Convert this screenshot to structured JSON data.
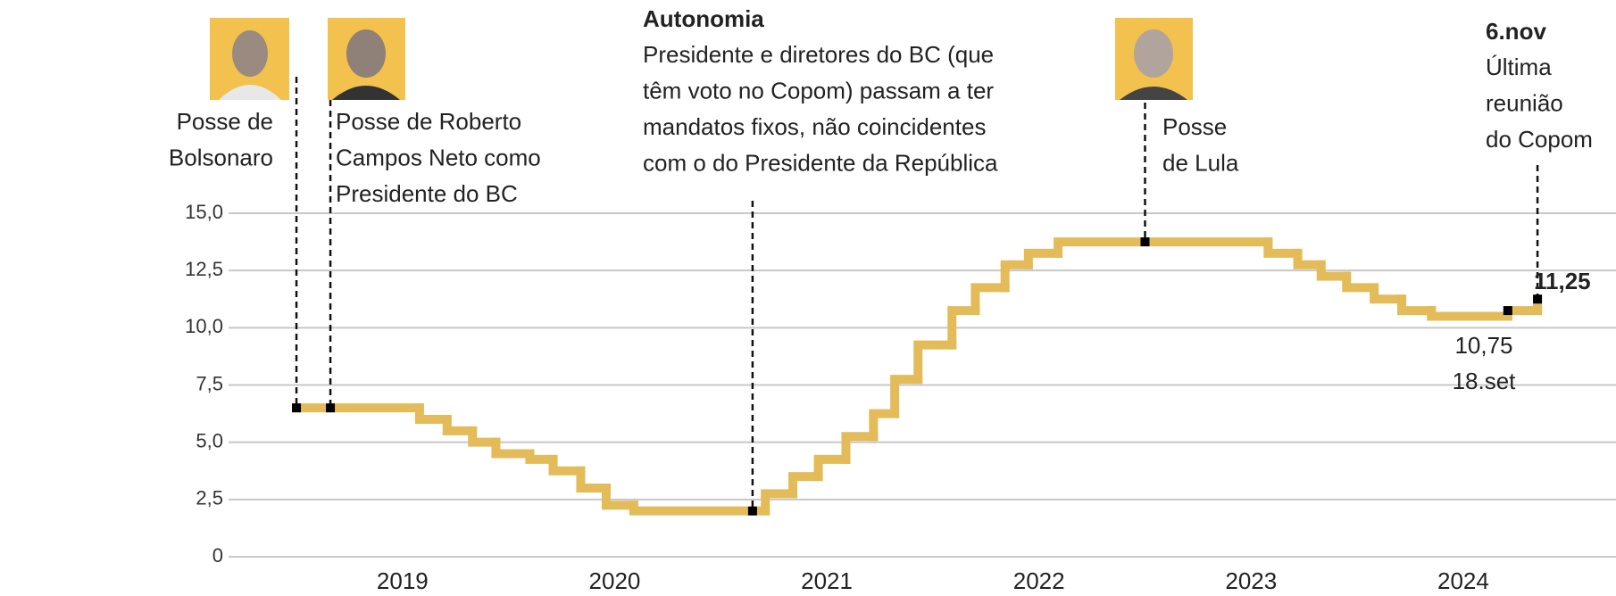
{
  "chart_data": {
    "type": "step",
    "x": [
      2019.0,
      2019.58,
      2019.71,
      2019.83,
      2019.94,
      2020.1,
      2020.21,
      2020.34,
      2020.46,
      2020.59,
      2021.21,
      2021.34,
      2021.46,
      2021.59,
      2021.72,
      2021.82,
      2021.93,
      2022.09,
      2022.2,
      2022.34,
      2022.45,
      2022.59,
      2023.58,
      2023.72,
      2023.83,
      2023.95,
      2024.08,
      2024.21,
      2024.35,
      2024.71,
      2024.85
    ],
    "values": [
      6.5,
      6,
      5.5,
      5,
      4.5,
      4.25,
      3.75,
      3,
      2.25,
      2,
      2.75,
      3.5,
      4.25,
      5.25,
      6.25,
      7.75,
      9.25,
      10.75,
      11.75,
      12.75,
      13.25,
      13.75,
      13.25,
      12.75,
      12.25,
      11.75,
      11.25,
      10.75,
      10.5,
      10.75,
      11.25
    ],
    "color": "#e3bb58",
    "xlim": [
      2018.68,
      2025.22
    ],
    "xticks": [
      {
        "value": 2019.5,
        "label": "2019"
      },
      {
        "value": 2020.5,
        "label": "2020"
      },
      {
        "value": 2021.5,
        "label": "2021"
      },
      {
        "value": 2022.5,
        "label": "2022"
      },
      {
        "value": 2023.5,
        "label": "2023"
      },
      {
        "value": 2024.5,
        "label": "2024"
      }
    ],
    "ylim": [
      0,
      15
    ],
    "yticks": [
      0,
      {
        "value": 2.5,
        "label": "2,5"
      },
      {
        "value": 5,
        "label": "5,0"
      },
      {
        "value": 7.5,
        "label": "7,5"
      },
      {
        "value": 10,
        "label": "10,0"
      },
      {
        "value": 12.5,
        "label": "12,5"
      },
      {
        "value": 15,
        "label": "15,0"
      }
    ],
    "grid": true,
    "annotations": [
      {
        "x": 2019.0,
        "y": 6.5,
        "lines": [
          "Posse de",
          "Bolsonaro"
        ]
      },
      {
        "x": 2019.16,
        "y": 6.5,
        "lines": [
          "Posse de Roberto",
          "Campos Neto como",
          "Presidente do BC"
        ]
      },
      {
        "x": 2021.15,
        "y": 2,
        "title": "Autonomia",
        "lines": [
          "Presidente e diretores do BC (que",
          "têm voto no Copom) passam a ter",
          "mandatos fixos, não coincidentes",
          "com o do Presidente da República"
        ]
      },
      {
        "x": 2023.0,
        "y": 13.75,
        "lines": [
          "Posse",
          "de Lula"
        ]
      },
      {
        "x": 2024.71,
        "y": 10.75,
        "label": "10,75",
        "lines": [
          "18.set"
        ]
      },
      {
        "x": 2024.85,
        "y": 11.25,
        "label": "11,25",
        "title": "6.nov",
        "lines": [
          "Última",
          "reunião",
          "do Copom"
        ]
      }
    ]
  }
}
